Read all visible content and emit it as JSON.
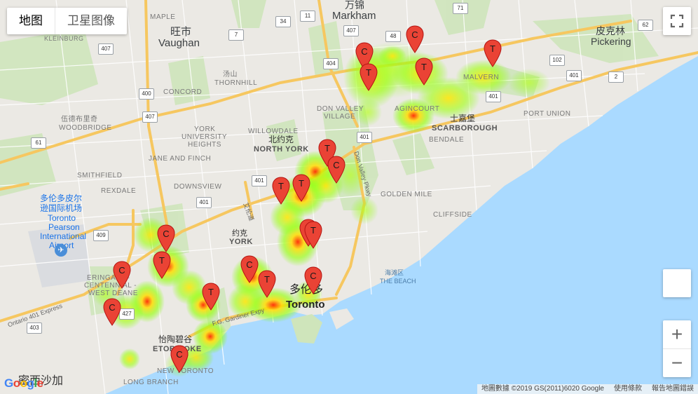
{
  "map_type": {
    "map_label": "地图",
    "satellite_label": "卫星图像"
  },
  "controls": {
    "zoom_in": "+",
    "zoom_out": "−"
  },
  "footer": {
    "map_data": "地圖數據 ©2019 GS(2011)6020 Google",
    "terms": "使用條款",
    "report": "報告地圖錯誤"
  },
  "logo": "Google",
  "colors": {
    "water": "#aadaff",
    "land": "#e8e6e1",
    "park": "#c9e2b3",
    "highway": "#f8c967",
    "marker": "#ea4335",
    "heat_low": "#7fff00",
    "heat_mid": "#ffff00",
    "heat_high": "#ff0000"
  },
  "places": {
    "wanjin": "万锦",
    "markham": "Markham",
    "wangshi": "旺市",
    "vaughan": "Vaughan",
    "pikelin": "皮克林",
    "pickering": "Pickering",
    "maple": "MAPLE",
    "kleinburg": "KLEINBURG",
    "concord": "CONCORD",
    "thornhill": "THORNHILL",
    "thornhill_zh": "汤山",
    "woodbridge": "WOODBRIDGE",
    "woodbridge_zh": "伍德布里奇",
    "willowdale": "WILLOWDALE",
    "don_valley": "DON VALLEY",
    "village": "VILLAGE",
    "york_university": "YORK",
    "york_university2": "UNIVERSITY",
    "york_heights": "HEIGHTS",
    "north_york_zh": "北约克",
    "north_york": "NORTH YORK",
    "jane_finch": "JANE AND FINCH",
    "downsview": "DOWNSVIEW",
    "smithfield": "SMITHFIELD",
    "rexdale": "REXDALE",
    "malvern": "MALVERN",
    "agincourt": "AGINCOURT",
    "tujiabao": "士嘉堡",
    "scarborough": "SCARBOROUGH",
    "bendale": "BENDALE",
    "port_union": "PORT UNION",
    "golden_mile": "GOLDEN MILE",
    "cliffside": "CLIFFSIDE",
    "york_zh": "约克",
    "york": "YORK",
    "the_beach_zh": "海滩区",
    "the_beach": "THE BEACH",
    "toronto_zh": "多伦多",
    "toronto": "Toronto",
    "airport_zh1": "多伦多皮尔",
    "airport_zh2": "逊国际机场",
    "airport1": "Toronto",
    "airport2": "Pearson",
    "airport3": "International",
    "airport4": "Airport",
    "eringate1": "ERINGATE -",
    "eringate2": "CENTENNIAL -",
    "eringate3": "WEST DEANE",
    "etobicoke_zh": "怡陶碧谷",
    "etobicoke": "ETOBICOKE",
    "new_toronto": "NEW TORONTO",
    "long_branch": "LONG BRANCH",
    "mississauga_zh": "密西沙加",
    "ontario_401": "Ontario 401 Express",
    "don_valley_pkwy": "Don Valley Pkwy",
    "allen_zh": "艾伦道",
    "gardiner": "F.G. Gardiner Expy"
  },
  "highways": [
    "407",
    "404",
    "401",
    "401",
    "400",
    "409",
    "427",
    "403",
    "34",
    "7",
    "71",
    "11",
    "2",
    "48",
    "62",
    "61",
    "102",
    "401",
    "401",
    "407",
    "407",
    "401"
  ],
  "markers": [
    {
      "letter": "C",
      "name": "marker-c-markham-1"
    },
    {
      "letter": "C",
      "name": "marker-c-markham-2"
    },
    {
      "letter": "T",
      "name": "marker-t-markham"
    },
    {
      "letter": "T",
      "name": "marker-t-agincourt"
    },
    {
      "letter": "T",
      "name": "marker-t-malvern"
    },
    {
      "letter": "T",
      "name": "marker-t-north-york-1"
    },
    {
      "letter": "C",
      "name": "marker-c-north-york"
    },
    {
      "letter": "T",
      "name": "marker-t-north-york-2"
    },
    {
      "letter": "T",
      "name": "marker-t-north-york-3"
    },
    {
      "letter": "T",
      "name": "marker-t-midtown-1"
    },
    {
      "letter": "T",
      "name": "marker-t-midtown-2"
    },
    {
      "letter": "C",
      "name": "marker-c-downtown"
    },
    {
      "letter": "C",
      "name": "marker-c-west-1"
    },
    {
      "letter": "T",
      "name": "marker-t-west-1"
    },
    {
      "letter": "T",
      "name": "marker-t-west-2"
    },
    {
      "letter": "C",
      "name": "marker-c-etobicoke-1"
    },
    {
      "letter": "T",
      "name": "marker-t-etobicoke-1"
    },
    {
      "letter": "C",
      "name": "marker-c-etobicoke-2"
    },
    {
      "letter": "C",
      "name": "marker-c-etobicoke-3"
    },
    {
      "letter": "T",
      "name": "marker-t-etobicoke-2"
    },
    {
      "letter": "C",
      "name": "marker-c-new-toronto"
    }
  ]
}
